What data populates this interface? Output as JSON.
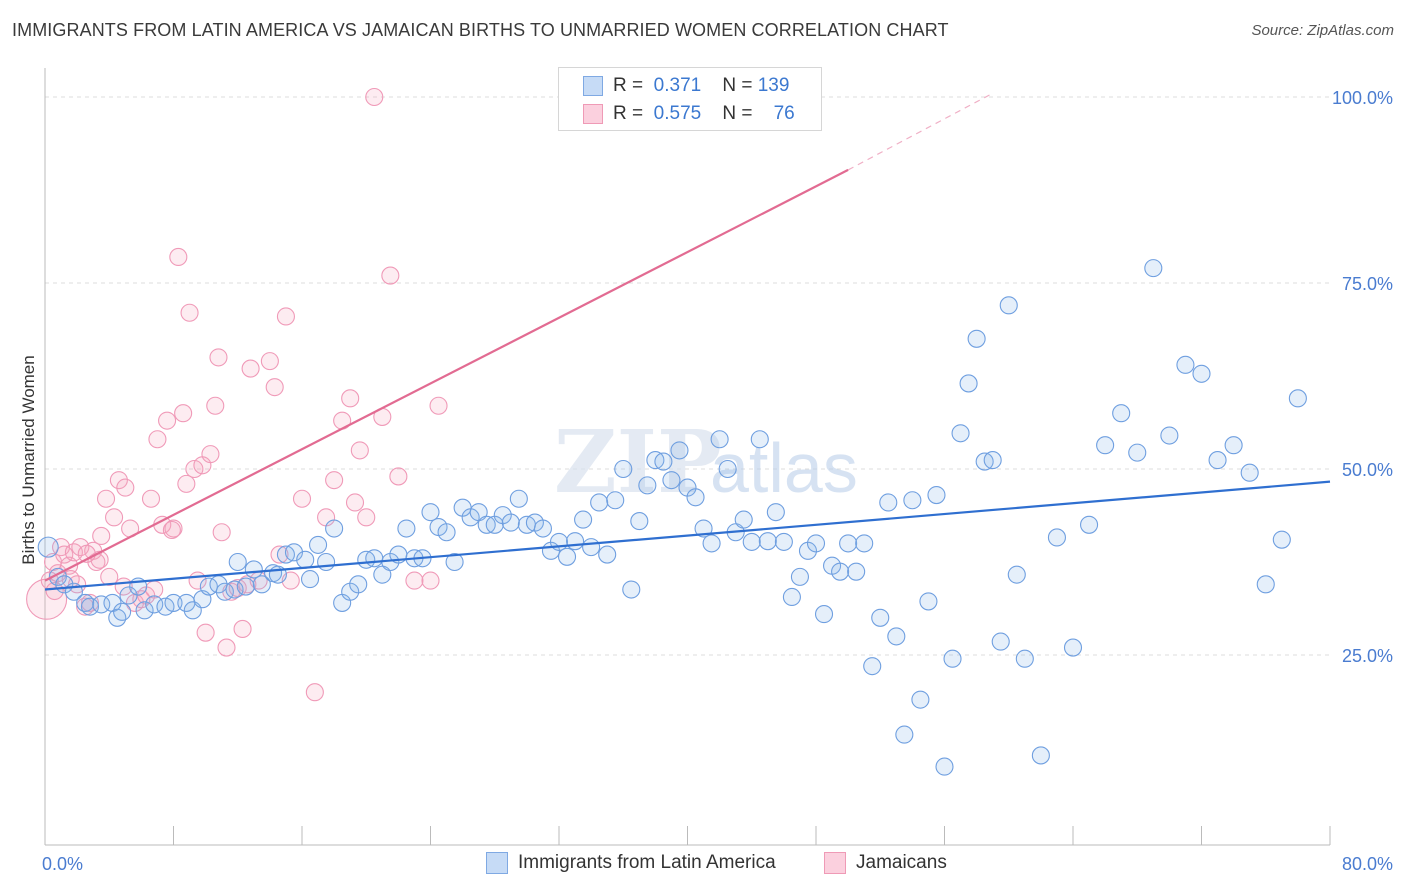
{
  "title": "IMMIGRANTS FROM LATIN AMERICA VS JAMAICAN BIRTHS TO UNMARRIED WOMEN CORRELATION CHART",
  "source": "Source: ZipAtlas.com",
  "watermark": "ZIPatlas",
  "legend_box": {
    "rows": [
      {
        "r_label": "R =",
        "r_value": "0.371",
        "n_label": "N =",
        "n_value": "139"
      },
      {
        "r_label": "R =",
        "r_value": "0.575",
        "n_label": "N =",
        "n_value": "76"
      }
    ]
  },
  "bottom_legend": [
    "Immigrants from Latin America",
    "Jamaicans"
  ],
  "chart_data": {
    "type": "scatter",
    "title": "IMMIGRANTS FROM LATIN AMERICA VS JAMAICAN BIRTHS TO UNMARRIED WOMEN CORRELATION CHART",
    "xlabel": "",
    "ylabel": "Births to Unmarried Women",
    "xlim": [
      0,
      80
    ],
    "ylim": [
      0,
      105
    ],
    "x_tick_labels": [
      "0.0%",
      "80.0%"
    ],
    "y_ticks": [
      25,
      50,
      75,
      100
    ],
    "y_tick_labels": [
      "25.0%",
      "50.0%",
      "75.0%",
      "100.0%"
    ],
    "grid": true,
    "colors": {
      "blue": "#8ab4ea",
      "blue_line": "#2f6fd0",
      "pink": "#f4a7bf",
      "pink_line": "#e26b92"
    },
    "series": [
      {
        "name": "Immigrants from Latin America",
        "r": 0.371,
        "n": 139,
        "trend": [
          [
            0,
            33.8
          ],
          [
            80,
            48.3
          ]
        ],
        "points": [
          [
            0.2,
            39.5
          ],
          [
            0.8,
            35.5
          ],
          [
            1.2,
            34.5
          ],
          [
            1.8,
            33.5
          ],
          [
            2.5,
            32.0
          ],
          [
            2.8,
            31.5
          ],
          [
            3.5,
            31.8
          ],
          [
            4.2,
            32.0
          ],
          [
            4.5,
            30.0
          ],
          [
            4.8,
            30.8
          ],
          [
            5.2,
            33.0
          ],
          [
            5.8,
            34.2
          ],
          [
            6.2,
            31.0
          ],
          [
            6.8,
            31.8
          ],
          [
            7.5,
            31.5
          ],
          [
            8.0,
            32.0
          ],
          [
            8.8,
            32.0
          ],
          [
            9.2,
            31.0
          ],
          [
            9.8,
            32.5
          ],
          [
            10.2,
            34.2
          ],
          [
            10.8,
            34.5
          ],
          [
            11.2,
            33.5
          ],
          [
            11.8,
            33.8
          ],
          [
            12.0,
            37.5
          ],
          [
            12.5,
            34.2
          ],
          [
            13.0,
            36.5
          ],
          [
            13.5,
            34.5
          ],
          [
            14.2,
            36.0
          ],
          [
            14.5,
            35.8
          ],
          [
            15.0,
            38.5
          ],
          [
            15.5,
            38.8
          ],
          [
            16.2,
            37.8
          ],
          [
            16.5,
            35.2
          ],
          [
            17.0,
            39.8
          ],
          [
            17.5,
            37.5
          ],
          [
            18.0,
            42.0
          ],
          [
            18.5,
            32.0
          ],
          [
            19.0,
            33.5
          ],
          [
            19.5,
            34.5
          ],
          [
            20.0,
            37.8
          ],
          [
            20.5,
            38.0
          ],
          [
            21.0,
            35.8
          ],
          [
            21.5,
            37.5
          ],
          [
            22.0,
            38.5
          ],
          [
            22.5,
            42.0
          ],
          [
            23.0,
            38.0
          ],
          [
            23.5,
            38.0
          ],
          [
            24.0,
            44.2
          ],
          [
            24.5,
            42.2
          ],
          [
            25.0,
            41.5
          ],
          [
            25.5,
            37.5
          ],
          [
            26.0,
            44.8
          ],
          [
            26.5,
            43.5
          ],
          [
            27.0,
            44.2
          ],
          [
            27.5,
            42.5
          ],
          [
            28.0,
            42.5
          ],
          [
            28.5,
            43.8
          ],
          [
            29.0,
            42.8
          ],
          [
            29.5,
            46.0
          ],
          [
            30.0,
            42.5
          ],
          [
            30.5,
            42.8
          ],
          [
            31.0,
            42.0
          ],
          [
            31.5,
            39.0
          ],
          [
            32.0,
            40.2
          ],
          [
            32.5,
            38.2
          ],
          [
            33.0,
            40.3
          ],
          [
            33.5,
            43.2
          ],
          [
            34.0,
            39.5
          ],
          [
            34.5,
            45.5
          ],
          [
            35.0,
            38.5
          ],
          [
            35.5,
            45.8
          ],
          [
            36.0,
            50.0
          ],
          [
            36.5,
            33.8
          ],
          [
            37.0,
            43.0
          ],
          [
            37.5,
            47.8
          ],
          [
            38.0,
            51.2
          ],
          [
            38.5,
            51.0
          ],
          [
            39.0,
            48.5
          ],
          [
            39.5,
            52.5
          ],
          [
            40.0,
            47.5
          ],
          [
            40.5,
            46.2
          ],
          [
            41.0,
            42.0
          ],
          [
            41.5,
            40.0
          ],
          [
            42.0,
            54.0
          ],
          [
            42.5,
            50.0
          ],
          [
            43.0,
            41.5
          ],
          [
            43.5,
            43.2
          ],
          [
            44.0,
            40.2
          ],
          [
            44.5,
            54.0
          ],
          [
            45.0,
            40.3
          ],
          [
            45.5,
            44.2
          ],
          [
            46.0,
            40.2
          ],
          [
            46.5,
            32.8
          ],
          [
            47.0,
            35.5
          ],
          [
            47.5,
            39.0
          ],
          [
            48.0,
            40.0
          ],
          [
            48.5,
            30.5
          ],
          [
            49.0,
            37.0
          ],
          [
            49.5,
            36.2
          ],
          [
            50.0,
            40.0
          ],
          [
            50.5,
            36.2
          ],
          [
            51.0,
            40.0
          ],
          [
            51.5,
            23.5
          ],
          [
            52.0,
            30.0
          ],
          [
            52.5,
            45.5
          ],
          [
            53.0,
            27.5
          ],
          [
            53.5,
            14.3
          ],
          [
            54.0,
            45.8
          ],
          [
            54.5,
            19.0
          ],
          [
            55.0,
            32.2
          ],
          [
            55.5,
            46.5
          ],
          [
            56.0,
            10.0
          ],
          [
            56.5,
            24.5
          ],
          [
            57.0,
            54.8
          ],
          [
            57.5,
            61.5
          ],
          [
            58.0,
            67.5
          ],
          [
            58.5,
            51.0
          ],
          [
            59.0,
            51.2
          ],
          [
            59.5,
            26.8
          ],
          [
            60.0,
            72.0
          ],
          [
            60.5,
            35.8
          ],
          [
            61.0,
            24.5
          ],
          [
            62.0,
            11.5
          ],
          [
            63.0,
            40.8
          ],
          [
            64.0,
            26.0
          ],
          [
            65.0,
            42.5
          ],
          [
            66.0,
            53.2
          ],
          [
            67.0,
            57.5
          ],
          [
            68.0,
            52.2
          ],
          [
            69.0,
            77.0
          ],
          [
            70.0,
            54.5
          ],
          [
            71.0,
            64.0
          ],
          [
            72.0,
            62.8
          ],
          [
            73.0,
            51.2
          ],
          [
            74.0,
            53.2
          ],
          [
            75.0,
            49.5
          ],
          [
            76.0,
            34.5
          ],
          [
            77.0,
            40.5
          ],
          [
            78.0,
            59.5
          ]
        ]
      },
      {
        "name": "Jamaicans",
        "r": 0.575,
        "n": 76,
        "trend": [
          [
            0,
            35.0
          ],
          [
            50,
            90.2
          ]
        ],
        "trend_dashed": [
          [
            50,
            90.2
          ],
          [
            59,
            100.5
          ]
        ],
        "points": [
          [
            0.1,
            32.5
          ],
          [
            0.3,
            35.0
          ],
          [
            0.5,
            37.5
          ],
          [
            0.8,
            36.0
          ],
          [
            1.0,
            39.5
          ],
          [
            1.2,
            38.5
          ],
          [
            1.5,
            37.0
          ],
          [
            1.8,
            38.8
          ],
          [
            2.0,
            34.5
          ],
          [
            2.2,
            39.5
          ],
          [
            2.5,
            31.5
          ],
          [
            2.8,
            32.0
          ],
          [
            3.0,
            39.0
          ],
          [
            3.2,
            37.5
          ],
          [
            3.5,
            41.0
          ],
          [
            3.8,
            46.0
          ],
          [
            4.0,
            35.5
          ],
          [
            4.3,
            43.5
          ],
          [
            4.6,
            48.5
          ],
          [
            5.0,
            47.5
          ],
          [
            5.3,
            42.0
          ],
          [
            5.6,
            32.0
          ],
          [
            6.0,
            32.5
          ],
          [
            6.3,
            33.0
          ],
          [
            6.6,
            46.0
          ],
          [
            7.0,
            54.0
          ],
          [
            7.3,
            42.5
          ],
          [
            7.6,
            56.5
          ],
          [
            8.0,
            42.0
          ],
          [
            8.3,
            78.5
          ],
          [
            8.6,
            57.5
          ],
          [
            8.8,
            48.0
          ],
          [
            9.0,
            71.0
          ],
          [
            9.3,
            50.0
          ],
          [
            9.5,
            35.0
          ],
          [
            9.8,
            50.5
          ],
          [
            10.0,
            28.0
          ],
          [
            10.3,
            52.0
          ],
          [
            10.6,
            58.5
          ],
          [
            10.8,
            65.0
          ],
          [
            11.0,
            41.5
          ],
          [
            11.3,
            26.0
          ],
          [
            11.6,
            33.5
          ],
          [
            12.0,
            34.0
          ],
          [
            12.3,
            28.5
          ],
          [
            12.6,
            34.5
          ],
          [
            12.8,
            63.5
          ],
          [
            13.3,
            35.0
          ],
          [
            14.0,
            64.5
          ],
          [
            14.3,
            61.0
          ],
          [
            14.6,
            38.5
          ],
          [
            15.0,
            70.5
          ],
          [
            15.3,
            35.0
          ],
          [
            16.0,
            46.0
          ],
          [
            16.8,
            20.0
          ],
          [
            17.5,
            43.5
          ],
          [
            18.0,
            48.5
          ],
          [
            18.5,
            56.5
          ],
          [
            19.0,
            59.5
          ],
          [
            19.3,
            45.5
          ],
          [
            19.6,
            52.5
          ],
          [
            20.0,
            43.5
          ],
          [
            20.5,
            100.0
          ],
          [
            21.0,
            57.0
          ],
          [
            21.5,
            76.0
          ],
          [
            22.0,
            49.0
          ],
          [
            23.0,
            35.0
          ],
          [
            24.0,
            35.0
          ],
          [
            24.5,
            58.5
          ],
          [
            3.4,
            37.8
          ],
          [
            1.6,
            35.2
          ],
          [
            2.6,
            38.6
          ],
          [
            0.6,
            33.6
          ],
          [
            4.9,
            34.2
          ],
          [
            6.8,
            33.8
          ],
          [
            7.9,
            41.8
          ]
        ]
      }
    ]
  }
}
